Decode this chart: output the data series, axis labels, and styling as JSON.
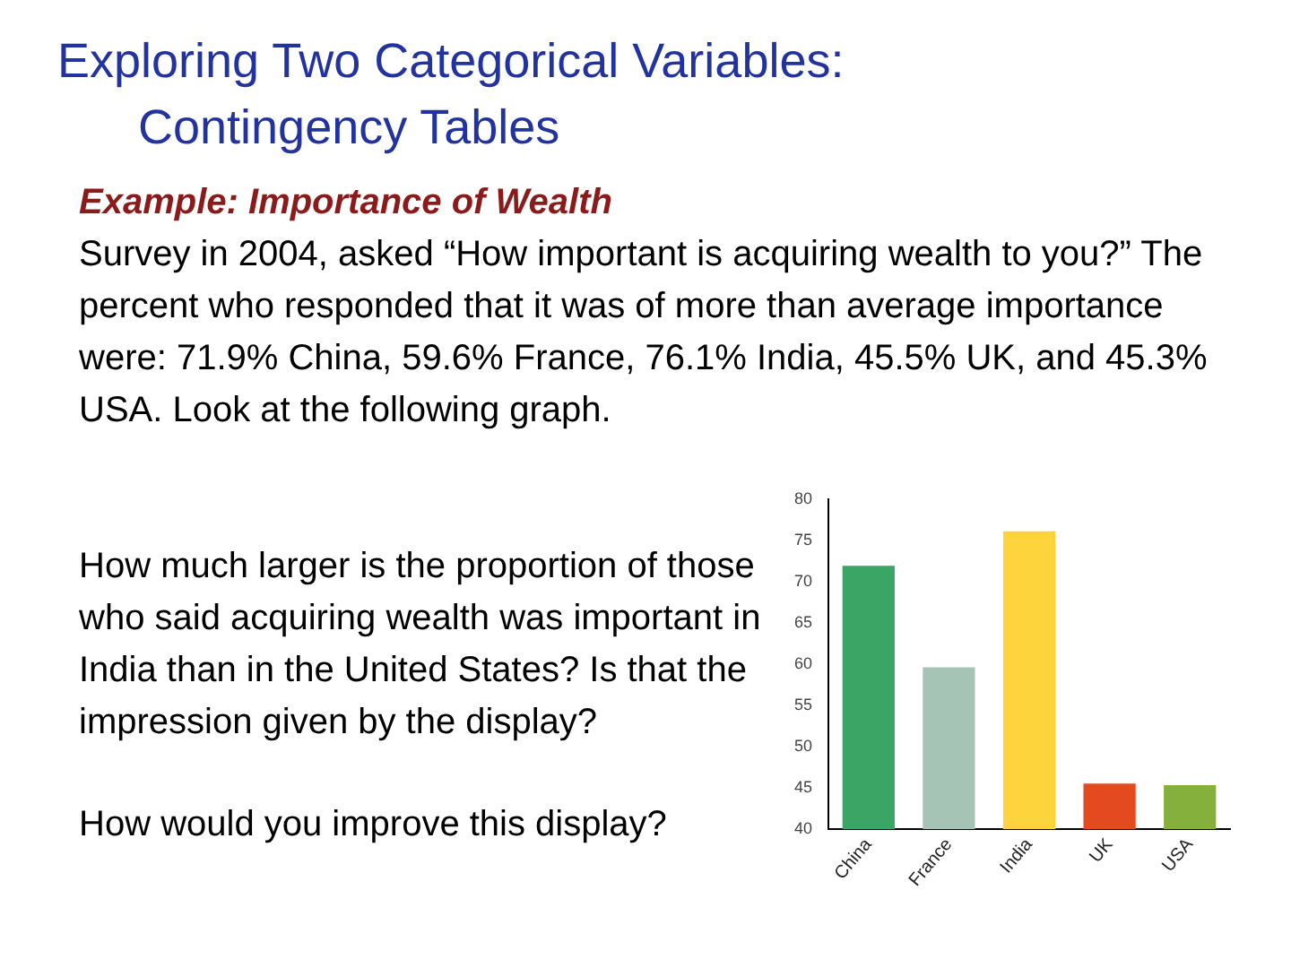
{
  "chart_data": {
    "type": "bar",
    "title": "Exploring Two Categorical Variables:\n      Contingency Tables",
    "subtitle": "Example:  Importance of Wealth",
    "annotations": [
      "Survey in 2004, asked “How important is acquiring wealth to you?” The percent who responded that it was of more than average importance were: 71.9% China, 59.6% France, 76.1% India, 45.5% UK, and 45.3% USA.  Look at the following graph.",
      "How much larger is the proportion of those who said acquiring wealth was important in India than in the United States?  Is that the impression given by the display?",
      "How would you improve this display?"
    ],
    "categories": [
      "China",
      "France",
      "India",
      "UK",
      "USA"
    ],
    "values": [
      71.9,
      59.6,
      76.1,
      45.5,
      45.3
    ],
    "colors": [
      "#3aa565",
      "#a5c4b5",
      "#fdd43c",
      "#e44a1f",
      "#86b03c"
    ],
    "ylim": [
      40,
      80
    ],
    "yticks": [
      40,
      45,
      50,
      55,
      60,
      65,
      70,
      75,
      80
    ],
    "grid": false
  }
}
